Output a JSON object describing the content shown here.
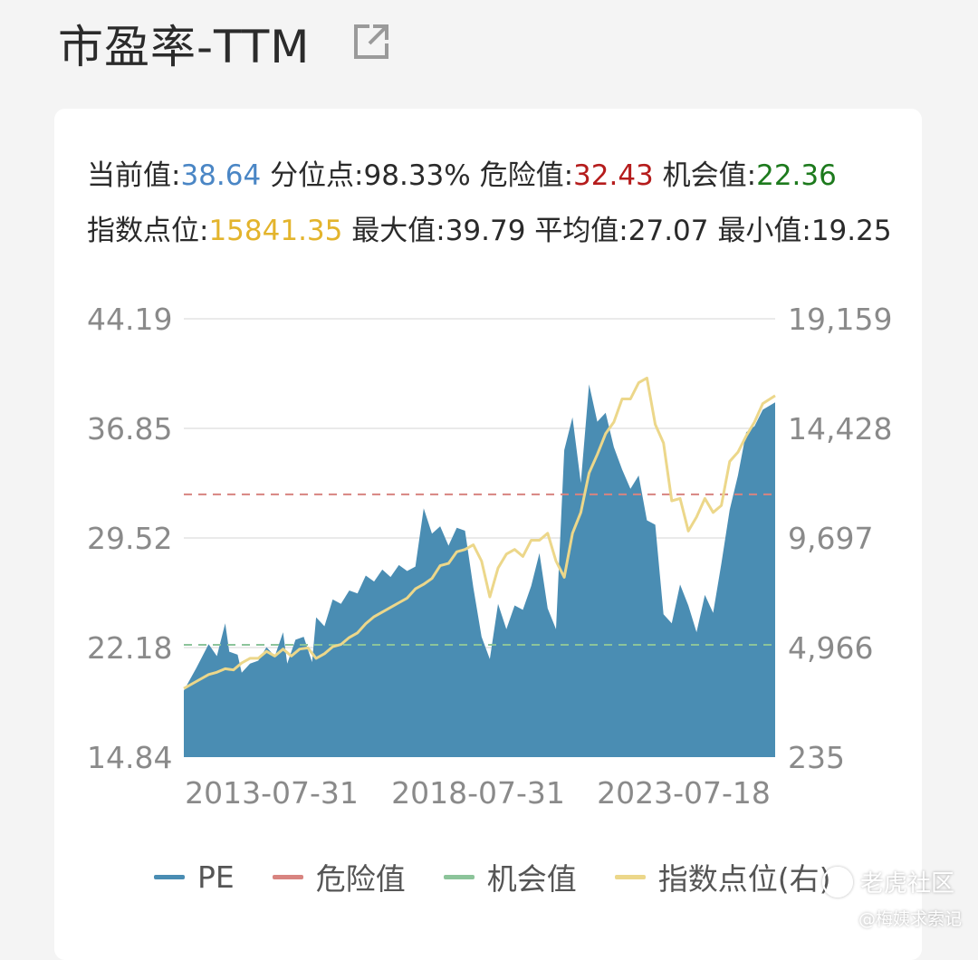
{
  "header": {
    "title": "市盈率-TTM",
    "share_icon": "external-link-icon"
  },
  "stats": {
    "current_label": "当前值:",
    "current_value": "38.64",
    "percentile_label": "分位点:",
    "percentile_value": "98.33%",
    "danger_label": "危险值:",
    "danger_value": "32.43",
    "opportunity_label": "机会值:",
    "opportunity_value": "22.36",
    "index_label": "指数点位:",
    "index_value": "15841.35",
    "max_label": "最大值:",
    "max_value": "39.79",
    "avg_label": "平均值:",
    "avg_value": "27.07",
    "min_label": "最小值:",
    "min_value": "19.25"
  },
  "colors": {
    "pe": "#4a8db3",
    "danger": "#d88480",
    "opportunity": "#8cc49a",
    "index": "#ecd78a",
    "current": "#4a86c5",
    "danger_text": "#b51c1c",
    "opportunity_text": "#1d7a1d",
    "index_text": "#e3b42c"
  },
  "chart_data": {
    "type": "area",
    "x_ticks": [
      "2013-07-31",
      "2018-07-31",
      "2023-07-18"
    ],
    "y_left": {
      "ticks": [
        "44.19",
        "36.85",
        "29.52",
        "22.18",
        "14.84"
      ],
      "range": [
        14.84,
        44.19
      ]
    },
    "y_right": {
      "ticks": [
        "19,159",
        "14,428",
        "9,697",
        "4,966",
        "235"
      ],
      "range": [
        235,
        19159
      ]
    },
    "danger_line": 32.43,
    "opportunity_line": 22.36,
    "x_range": [
      2012.5,
      2026.8
    ],
    "series": [
      {
        "name": "PE",
        "type": "area",
        "axis": "left",
        "x": [
          2012.5,
          2012.8,
          2013.1,
          2013.3,
          2013.5,
          2013.6,
          2013.8,
          2013.9,
          2014.1,
          2014.3,
          2014.5,
          2014.7,
          2014.9,
          2015.0,
          2015.2,
          2015.4,
          2015.6,
          2015.7,
          2015.9,
          2016.1,
          2016.3,
          2016.5,
          2016.7,
          2016.9,
          2017.1,
          2017.3,
          2017.5,
          2017.7,
          2017.9,
          2018.1,
          2018.3,
          2018.5,
          2018.7,
          2018.9,
          2019.1,
          2019.3,
          2019.5,
          2019.7,
          2019.9,
          2020.1,
          2020.3,
          2020.5,
          2020.7,
          2020.9,
          2021.1,
          2021.3,
          2021.5,
          2021.7,
          2021.9,
          2022.1,
          2022.3,
          2022.5,
          2022.7,
          2022.9,
          2023.1,
          2023.3,
          2023.5,
          2023.7,
          2023.9,
          2024.1,
          2024.3,
          2024.5,
          2024.7,
          2024.9,
          2025.1,
          2025.3,
          2025.5,
          2025.7,
          2025.9,
          2026.1,
          2026.3,
          2026.5,
          2026.8
        ],
        "values": [
          19.3,
          20.8,
          22.4,
          21.6,
          23.8,
          21.9,
          21.7,
          20.5,
          21.1,
          21.3,
          22.2,
          21.6,
          23.2,
          21.1,
          22.7,
          22.9,
          21.2,
          24.2,
          23.6,
          25.4,
          25.1,
          26.0,
          25.8,
          27.0,
          26.6,
          27.4,
          26.9,
          27.7,
          27.3,
          27.6,
          31.5,
          29.8,
          30.3,
          29.0,
          30.2,
          30.0,
          26.2,
          22.9,
          21.4,
          25.1,
          23.4,
          25.0,
          24.7,
          26.3,
          28.5,
          24.8,
          23.4,
          35.4,
          37.6,
          33.2,
          39.8,
          37.3,
          37.9,
          35.6,
          34.1,
          32.8,
          33.7,
          30.7,
          30.4,
          24.4,
          23.8,
          26.4,
          25.0,
          23.2,
          25.7,
          24.5,
          27.8,
          31.4,
          33.7,
          36.6,
          37.0,
          38.1,
          38.6
        ]
      },
      {
        "name": "指数点位(右)",
        "type": "line",
        "axis": "right",
        "x": [
          2012.5,
          2012.8,
          2013.1,
          2013.3,
          2013.5,
          2013.7,
          2013.9,
          2014.1,
          2014.3,
          2014.5,
          2014.7,
          2014.9,
          2015.1,
          2015.3,
          2015.5,
          2015.7,
          2015.9,
          2016.1,
          2016.3,
          2016.5,
          2016.7,
          2016.9,
          2017.1,
          2017.3,
          2017.5,
          2017.7,
          2017.9,
          2018.1,
          2018.3,
          2018.5,
          2018.7,
          2018.9,
          2019.1,
          2019.3,
          2019.5,
          2019.7,
          2019.9,
          2020.1,
          2020.3,
          2020.5,
          2020.7,
          2020.9,
          2021.1,
          2021.3,
          2021.5,
          2021.7,
          2021.9,
          2022.1,
          2022.3,
          2022.5,
          2022.7,
          2022.9,
          2023.1,
          2023.3,
          2023.5,
          2023.7,
          2023.9,
          2024.1,
          2024.3,
          2024.5,
          2024.7,
          2024.9,
          2025.1,
          2025.3,
          2025.5,
          2025.7,
          2025.9,
          2026.1,
          2026.3,
          2026.5,
          2026.8
        ],
        "values": [
          3200,
          3500,
          3800,
          3900,
          4050,
          4000,
          4300,
          4500,
          4500,
          4800,
          4600,
          4900,
          4600,
          4900,
          4950,
          4500,
          4700,
          5000,
          5100,
          5400,
          5600,
          6000,
          6300,
          6500,
          6700,
          6900,
          7100,
          7500,
          7700,
          7950,
          8500,
          8600,
          9100,
          9200,
          9400,
          8700,
          7150,
          8400,
          9000,
          9200,
          8900,
          9600,
          9600,
          9900,
          8700,
          8000,
          9900,
          10800,
          12500,
          13300,
          14200,
          14700,
          15700,
          15700,
          16400,
          16600,
          14600,
          13800,
          11300,
          11400,
          10000,
          10600,
          11400,
          10800,
          11100,
          13000,
          13400,
          14100,
          14700,
          15500,
          15841
        ]
      }
    ]
  },
  "legend": {
    "pe": "PE",
    "danger": "危险值",
    "opportunity": "机会值",
    "index": "指数点位(右)"
  },
  "watermark": {
    "brand": "老虎社区",
    "user": "@梅姨求索记"
  }
}
